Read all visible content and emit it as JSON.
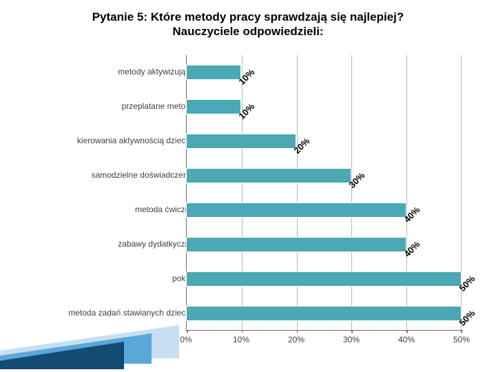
{
  "title": {
    "line1": "Pytanie 5: Które metody pracy sprawdzają się najlepiej?",
    "line2": "Nauczyciele odpowiedzieli:",
    "fontsize": 17,
    "color": "#000000"
  },
  "chart": {
    "type": "bar",
    "orientation": "horizontal",
    "bar_color": "#4ba8b5",
    "bar_border": "#ffffff",
    "grid_color": "#b8b8b8",
    "axis_color": "#6b6b6b",
    "background_color": "#ffffff",
    "xlim": [
      0,
      50
    ],
    "xtick_step": 10,
    "xticks": [
      "0%",
      "10%",
      "20%",
      "30%",
      "40%",
      "50%"
    ],
    "label_fontsize": 12,
    "data_label_fontsize": 13,
    "data_label_rotation": -45,
    "categories": [
      {
        "label": "metody aktywizujące",
        "value": 10,
        "data_label": "10%"
      },
      {
        "label": "przeplatane metody",
        "value": 10,
        "data_label": "10%"
      },
      {
        "label": "kierowania aktywnością dziecka",
        "value": 20,
        "data_label": "20%"
      },
      {
        "label": "samodzielne doświadczenia",
        "value": 30,
        "data_label": "30%"
      },
      {
        "label": "metoda ćwiczeń",
        "value": 40,
        "data_label": "40%"
      },
      {
        "label": "zabawy dydatkyczne",
        "value": 40,
        "data_label": "40%"
      },
      {
        "label": "pokaz",
        "value": 50,
        "data_label": "50%"
      },
      {
        "label": "metoda zadań stawianych dziecku",
        "value": 50,
        "data_label": "50%"
      }
    ]
  },
  "decor": {
    "triangle1_color": "#124b73",
    "triangle2_color": "#5aa8d8",
    "triangle3_color": "#c7dff0"
  }
}
